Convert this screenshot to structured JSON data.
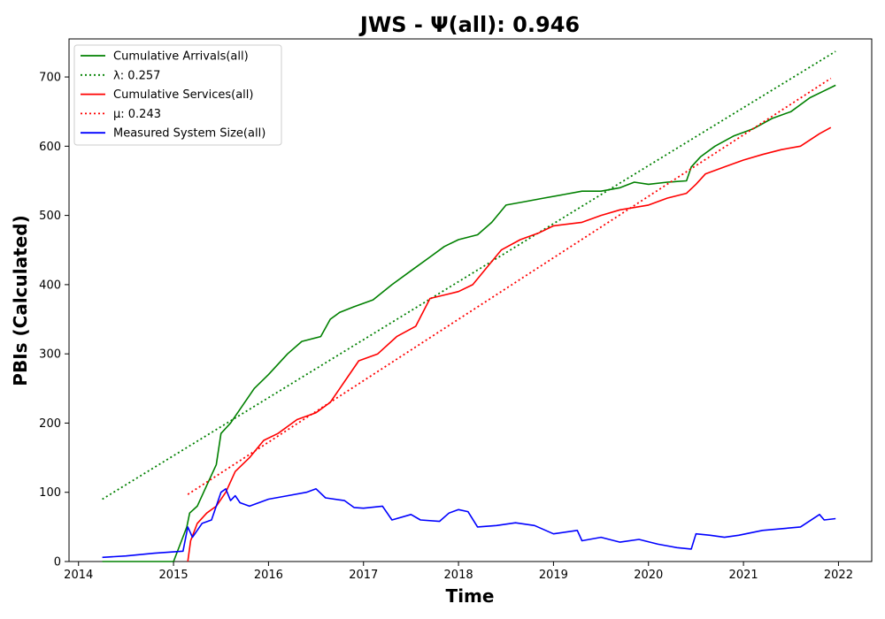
{
  "chart_data": {
    "type": "line",
    "title": "JWS -  Ψ(all): 0.946",
    "xlabel": "Time",
    "ylabel": "PBIs (Calculated)",
    "xlim": [
      2013.9,
      2022.35
    ],
    "ylim": [
      0,
      755
    ],
    "x_ticks": [
      2014,
      2015,
      2016,
      2017,
      2018,
      2019,
      2020,
      2021,
      2022
    ],
    "x_tick_labels": [
      "2014",
      "2015",
      "2016",
      "2017",
      "2018",
      "2019",
      "2020",
      "2021",
      "2022"
    ],
    "y_ticks": [
      0,
      100,
      200,
      300,
      400,
      500,
      600,
      700
    ],
    "y_tick_labels": [
      "0",
      "100",
      "200",
      "300",
      "400",
      "500",
      "600",
      "700"
    ],
    "grid": false,
    "legend_position": "top-left",
    "series": [
      {
        "name": "Cumulative Arrivals(all)",
        "color": "#008000",
        "style": "solid",
        "x": [
          2014.25,
          2015.0,
          2015.14,
          2015.17,
          2015.25,
          2015.35,
          2015.45,
          2015.5,
          2015.6,
          2015.7,
          2015.85,
          2016.0,
          2016.1,
          2016.2,
          2016.35,
          2016.55,
          2016.65,
          2016.75,
          2016.9,
          2017.1,
          2017.3,
          2017.5,
          2017.7,
          2017.85,
          2018.0,
          2018.2,
          2018.35,
          2018.5,
          2018.7,
          2018.9,
          2019.1,
          2019.3,
          2019.5,
          2019.7,
          2019.85,
          2020.0,
          2020.2,
          2020.4,
          2020.45,
          2020.55,
          2020.7,
          2020.9,
          2021.1,
          2021.3,
          2021.5,
          2021.7,
          2021.85,
          2021.97
        ],
        "y": [
          0,
          0,
          50,
          70,
          80,
          110,
          140,
          185,
          200,
          220,
          250,
          270,
          285,
          300,
          318,
          325,
          350,
          360,
          368,
          378,
          400,
          420,
          440,
          455,
          465,
          472,
          490,
          515,
          520,
          525,
          530,
          535,
          535,
          540,
          548,
          545,
          548,
          550,
          570,
          585,
          600,
          615,
          625,
          640,
          650,
          670,
          680,
          688
        ]
      },
      {
        "name": "λ: 0.257",
        "color": "#008000",
        "style": "dotted",
        "x": [
          2014.25,
          2021.97
        ],
        "y": [
          90,
          737
        ]
      },
      {
        "name": "Cumulative Services(all)",
        "color": "#ff0000",
        "style": "solid",
        "x": [
          2015.15,
          2015.18,
          2015.25,
          2015.35,
          2015.45,
          2015.55,
          2015.65,
          2015.8,
          2015.95,
          2016.1,
          2016.3,
          2016.5,
          2016.65,
          2016.8,
          2016.95,
          2017.15,
          2017.35,
          2017.55,
          2017.7,
          2017.85,
          2018.0,
          2018.15,
          2018.3,
          2018.45,
          2018.65,
          2018.85,
          2019.0,
          2019.3,
          2019.5,
          2019.7,
          2020.0,
          2020.2,
          2020.4,
          2020.5,
          2020.6,
          2020.8,
          2021.0,
          2021.2,
          2021.4,
          2021.6,
          2021.8,
          2021.92
        ],
        "y": [
          0,
          30,
          55,
          70,
          80,
          100,
          130,
          150,
          175,
          185,
          205,
          215,
          230,
          260,
          290,
          300,
          325,
          340,
          380,
          385,
          390,
          400,
          425,
          450,
          465,
          475,
          485,
          490,
          500,
          508,
          515,
          525,
          532,
          545,
          560,
          570,
          580,
          588,
          595,
          600,
          618,
          627
        ]
      },
      {
        "name": "μ: 0.243",
        "color": "#ff0000",
        "style": "dotted",
        "x": [
          2015.15,
          2021.92
        ],
        "y": [
          97,
          698
        ]
      },
      {
        "name": "Measured System Size(all)",
        "color": "#0000ff",
        "style": "solid",
        "x": [
          2014.25,
          2014.5,
          2014.8,
          2015.1,
          2015.15,
          2015.2,
          2015.3,
          2015.4,
          2015.5,
          2015.55,
          2015.6,
          2015.65,
          2015.7,
          2015.8,
          2016.0,
          2016.2,
          2016.4,
          2016.5,
          2016.6,
          2016.8,
          2016.9,
          2017.0,
          2017.2,
          2017.3,
          2017.5,
          2017.6,
          2017.8,
          2017.9,
          2018.0,
          2018.1,
          2018.2,
          2018.4,
          2018.6,
          2018.8,
          2019.0,
          2019.25,
          2019.3,
          2019.5,
          2019.7,
          2019.9,
          2020.1,
          2020.3,
          2020.45,
          2020.5,
          2020.65,
          2020.8,
          2020.95,
          2021.2,
          2021.45,
          2021.6,
          2021.8,
          2021.85,
          2021.97
        ],
        "y": [
          6,
          8,
          12,
          15,
          50,
          35,
          55,
          60,
          100,
          105,
          88,
          95,
          85,
          80,
          90,
          95,
          100,
          105,
          92,
          88,
          78,
          77,
          80,
          60,
          68,
          60,
          58,
          70,
          75,
          72,
          50,
          52,
          56,
          52,
          40,
          45,
          30,
          35,
          28,
          32,
          25,
          20,
          18,
          40,
          38,
          35,
          38,
          45,
          48,
          50,
          68,
          60,
          62
        ]
      }
    ]
  }
}
